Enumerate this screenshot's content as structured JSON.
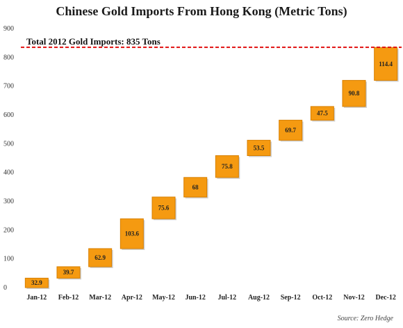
{
  "chart_data": {
    "type": "bar",
    "subtype": "waterfall",
    "title": "Chinese Gold Imports From Hong Kong (Metric Tons)",
    "categories": [
      "Jan-12",
      "Feb-12",
      "Mar-12",
      "Apr-12",
      "May-12",
      "Jun-12",
      "Jul-12",
      "Aug-12",
      "Sep-12",
      "Oct-12",
      "Nov-12",
      "Dec-12"
    ],
    "values": [
      32.9,
      39.7,
      62.9,
      103.6,
      75.6,
      68,
      75.8,
      53.5,
      69.7,
      47.5,
      90.8,
      114.4
    ],
    "value_labels": [
      "32.9",
      "39.7",
      "62.9",
      "103.6",
      "75.6",
      "68",
      "75.8",
      "53.5",
      "69.7",
      "47.5",
      "90.8",
      "114.4"
    ],
    "ylim": [
      0,
      900
    ],
    "yticks": [
      0,
      100,
      200,
      300,
      400,
      500,
      600,
      700,
      800,
      900
    ],
    "grid": false,
    "bar_color": "#f59a11",
    "reference_line": {
      "value": 835,
      "label": "Total 2012 Gold Imports: 835 Tons",
      "color": "#e01010",
      "style": "dashed"
    },
    "source": "Source: Zero Hedge"
  }
}
